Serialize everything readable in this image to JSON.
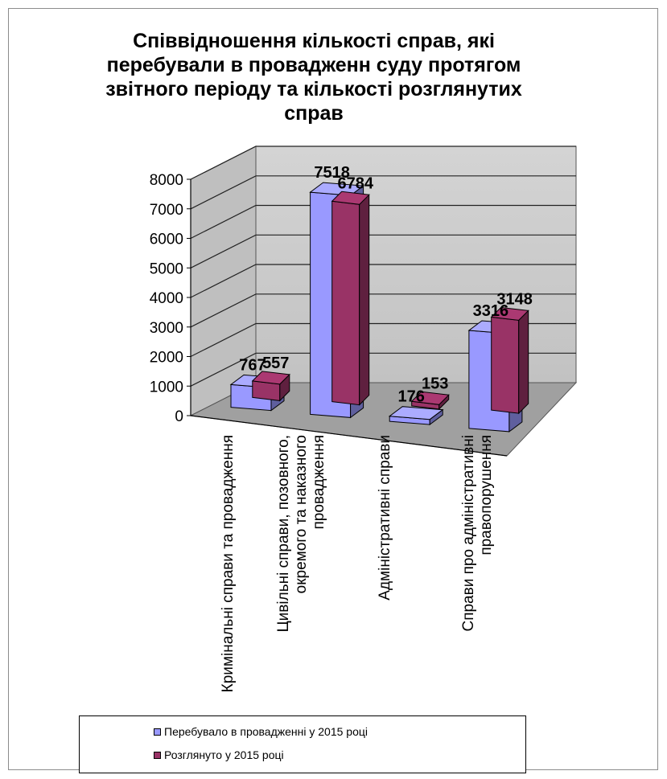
{
  "chart_data": {
    "type": "bar",
    "title": "Співвідношення кількості справ, які перебували в провадженн суду протягом звітного періоду та кількості розглянутих справ",
    "categories": [
      [
        "Кримінальні справи та провадження"
      ],
      [
        "Цивільні справи, позовного,",
        "окремого та наказного",
        "провадження"
      ],
      [
        "Адміністративні справи"
      ],
      [
        "Справи про адміністративні",
        "правопорушення"
      ]
    ],
    "series": [
      {
        "name": "Перебувало в провадженні у 2015 році",
        "values": [
          767,
          7518,
          176,
          3316
        ],
        "color": "#9999ff"
      },
      {
        "name": "Розглянуто у 2015 році",
        "values": [
          557,
          6784,
          153,
          3148
        ],
        "color": "#993366"
      }
    ],
    "ylim": [
      0,
      8000
    ],
    "yticks": [
      0,
      1000,
      2000,
      3000,
      4000,
      5000,
      6000,
      7000,
      8000
    ],
    "grid": true,
    "legend_position": "bottom",
    "style": "3d-column"
  }
}
